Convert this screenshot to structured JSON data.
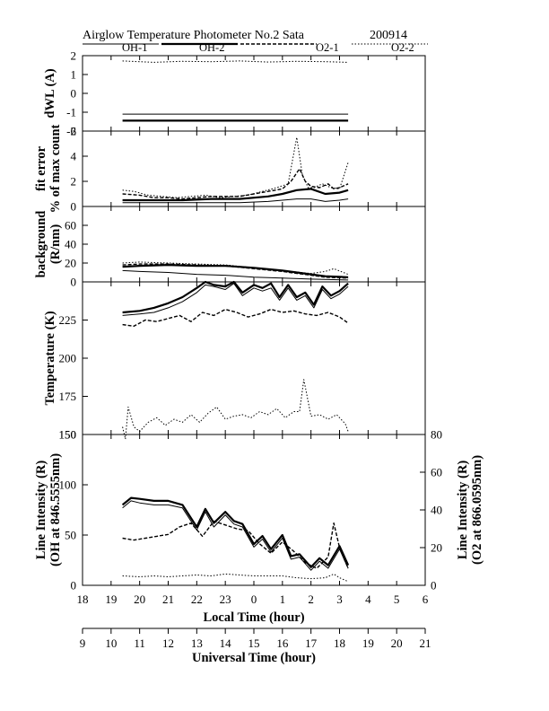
{
  "header": {
    "title": "Airglow Temperature Photometer No.2  Sata",
    "date": "200914"
  },
  "chart_data": {
    "type": "line",
    "legend": [
      {
        "name": "OH-1",
        "style": "thin-solid"
      },
      {
        "name": "OH-2",
        "style": "thick-solid"
      },
      {
        "name": "O2-1",
        "style": "dashed"
      },
      {
        "name": "O2-2",
        "style": "dotted"
      }
    ],
    "x_axes": {
      "local": {
        "label": "Local Time (hour)",
        "ticks": [
          "18",
          "19",
          "20",
          "21",
          "22",
          "23",
          "0",
          "1",
          "2",
          "3",
          "4",
          "5",
          "6"
        ],
        "range": [
          18,
          30
        ]
      },
      "universal": {
        "label": "Universal Time (hour)",
        "ticks": [
          "9",
          "10",
          "11",
          "12",
          "13",
          "14",
          "15",
          "16",
          "17",
          "18",
          "19",
          "20",
          "21"
        ],
        "range": [
          9,
          21
        ]
      }
    },
    "panels": [
      {
        "id": "dwl",
        "ylabel": "dWL (A)",
        "ylim": [
          -2,
          2
        ],
        "yticks": [
          "2",
          "1",
          "0",
          "-1",
          "-2"
        ],
        "series": [
          {
            "name": "OH-1",
            "x": [
              19.4,
              20.2,
              21.0,
              22.0,
              23.0,
              0.0,
              1.0,
              2.0,
              3.3
            ],
            "y": [
              -1.1,
              -1.1,
              -1.1,
              -1.1,
              -1.1,
              -1.1,
              -1.1,
              -1.1,
              -1.1
            ]
          },
          {
            "name": "OH-2",
            "x": [
              19.4,
              21.0,
              23.0,
              1.0,
              3.3
            ],
            "y": [
              -1.45,
              -1.45,
              -1.45,
              -1.45,
              -1.45
            ]
          },
          {
            "name": "O2-2",
            "x": [
              19.4,
              20.5,
              21.5,
              22.5,
              23.5,
              0.5,
              1.5,
              2.5,
              3.3
            ],
            "y": [
              1.72,
              1.65,
              1.7,
              1.68,
              1.72,
              1.66,
              1.7,
              1.68,
              1.65
            ]
          }
        ]
      },
      {
        "id": "fit_error",
        "ylabel": "fit error",
        "ylabel2": "% of max count",
        "ylim": [
          0,
          6
        ],
        "yticks": [
          "6",
          "4",
          "2",
          "0"
        ],
        "series": [
          {
            "name": "OH-1",
            "x": [
              19.4,
              20.5,
              21.5,
              22.5,
              23.5,
              0.5,
              1.0,
              1.5,
              2.0,
              2.5,
              3.0,
              3.3
            ],
            "y": [
              0.3,
              0.3,
              0.3,
              0.3,
              0.3,
              0.4,
              0.5,
              0.6,
              0.6,
              0.4,
              0.5,
              0.6
            ]
          },
          {
            "name": "OH-2",
            "x": [
              19.4,
              20.5,
              21.5,
              22.5,
              23.5,
              0.5,
              1.0,
              1.5,
              2.0,
              2.5,
              3.0,
              3.3
            ],
            "y": [
              0.5,
              0.5,
              0.5,
              0.6,
              0.6,
              0.8,
              1.0,
              1.3,
              1.4,
              1.0,
              1.1,
              1.3
            ]
          },
          {
            "name": "O2-1",
            "x": [
              19.4,
              20.0,
              20.5,
              21.0,
              21.5,
              22.0,
              22.5,
              23.0,
              23.5,
              0.0,
              0.5,
              1.0,
              1.3,
              1.6,
              1.8,
              2.0,
              2.3,
              2.6,
              2.8,
              3.0,
              3.3
            ],
            "y": [
              1.0,
              0.9,
              0.7,
              0.7,
              0.6,
              0.7,
              0.8,
              0.8,
              0.8,
              1.0,
              1.2,
              1.4,
              2.0,
              3.0,
              2.0,
              1.6,
              1.5,
              1.8,
              1.4,
              1.5,
              1.8
            ]
          },
          {
            "name": "O2-2",
            "x": [
              19.4,
              19.8,
              20.3,
              20.8,
              21.3,
              21.8,
              22.3,
              22.8,
              23.3,
              23.8,
              0.3,
              0.8,
              1.2,
              1.5,
              1.7,
              1.9,
              2.1,
              2.4,
              2.7,
              3.0,
              3.3
            ],
            "y": [
              1.3,
              1.2,
              0.9,
              0.8,
              0.7,
              0.8,
              0.9,
              0.7,
              0.8,
              0.9,
              1.2,
              1.5,
              1.8,
              5.5,
              2.5,
              1.5,
              1.5,
              1.8,
              1.5,
              1.4,
              3.5
            ]
          }
        ]
      },
      {
        "id": "background",
        "ylabel": "background",
        "ylabel2": "(R/nm)",
        "ylim": [
          0,
          80
        ],
        "yticks": [
          "60",
          "40",
          "20",
          "0"
        ],
        "series": [
          {
            "name": "OH-1",
            "x": [
              19.4,
              20.0,
              21.0,
              22.0,
              23.0,
              0.0,
              1.0,
              2.0,
              3.3
            ],
            "y": [
              12,
              11,
              10,
              8,
              7,
              5,
              4,
              3,
              2
            ]
          },
          {
            "name": "OH-2",
            "x": [
              19.4,
              20.0,
              21.0,
              22.0,
              23.0,
              0.0,
              1.0,
              2.0,
              2.5,
              3.3
            ],
            "y": [
              16,
              17,
              18,
              17,
              17,
              15,
              12,
              8,
              6,
              5
            ]
          },
          {
            "name": "O2-1",
            "x": [
              19.4,
              20.0,
              21.0,
              22.0,
              23.0,
              0.0,
              1.0,
              2.0,
              2.5,
              3.3
            ],
            "y": [
              18,
              19,
              19,
              18,
              17,
              14,
              11,
              7,
              5,
              4
            ]
          },
          {
            "name": "O2-2",
            "x": [
              19.4,
              20.0,
              21.0,
              22.0,
              23.0,
              0.0,
              1.0,
              2.0,
              2.5,
              2.8,
              3.3
            ],
            "y": [
              20,
              21,
              20,
              19,
              18,
              15,
              12,
              9,
              11,
              14,
              8
            ]
          }
        ]
      },
      {
        "id": "temperature",
        "ylabel": "Temperature (K)",
        "ylim": [
          150,
          250
        ],
        "yticks": [
          "225",
          "200",
          "175",
          "150"
        ],
        "series": [
          {
            "name": "OH-1",
            "x": [
              19.4,
              20.0,
              20.5,
              21.0,
              21.5,
              22.0,
              22.3,
              22.6,
              23.0,
              23.3,
              23.6,
              0.0,
              0.3,
              0.6,
              0.9,
              1.2,
              1.5,
              1.8,
              2.1,
              2.4,
              2.7,
              3.0,
              3.3
            ],
            "y": [
              228,
              229,
              230,
              233,
              237,
              243,
              248,
              247,
              245,
              249,
              241,
              246,
              244,
              246,
              238,
              246,
              238,
              241,
              233,
              245,
              239,
              242,
              247
            ]
          },
          {
            "name": "OH-2",
            "x": [
              19.4,
              20.0,
              20.5,
              21.0,
              21.5,
              22.0,
              22.3,
              22.6,
              23.0,
              23.3,
              23.6,
              0.0,
              0.3,
              0.6,
              0.9,
              1.2,
              1.5,
              1.8,
              2.1,
              2.4,
              2.7,
              3.0,
              3.3
            ],
            "y": [
              230,
              231,
              233,
              236,
              240,
              246,
              250,
              248,
              247,
              250,
              243,
              248,
              246,
              249,
              240,
              248,
              240,
              243,
              235,
              247,
              241,
              244,
              249
            ]
          },
          {
            "name": "O2-1",
            "x": [
              19.4,
              19.8,
              20.2,
              20.6,
              21.0,
              21.4,
              21.8,
              22.2,
              22.6,
              23.0,
              23.4,
              23.8,
              0.2,
              0.6,
              1.0,
              1.4,
              1.8,
              2.2,
              2.6,
              3.0,
              3.3
            ],
            "y": [
              222,
              221,
              225,
              224,
              226,
              228,
              224,
              230,
              228,
              232,
              230,
              227,
              229,
              232,
              230,
              231,
              229,
              228,
              230,
              227,
              223
            ]
          },
          {
            "name": "O2-2",
            "x": [
              19.4,
              19.5,
              19.6,
              19.8,
              20.0,
              20.3,
              20.6,
              20.9,
              21.2,
              21.5,
              21.8,
              22.1,
              22.4,
              22.7,
              23.0,
              23.3,
              23.6,
              23.9,
              0.2,
              0.5,
              0.8,
              1.1,
              1.4,
              1.6,
              1.75,
              2.0,
              2.3,
              2.6,
              2.9,
              3.2,
              3.3
            ],
            "y": [
              155,
              147,
              168,
              155,
              152,
              158,
              161,
              156,
              160,
              158,
              163,
              158,
              164,
              168,
              160,
              162,
              163,
              161,
              165,
              163,
              167,
              161,
              165,
              165,
              186,
              162,
              163,
              160,
              163,
              157,
              152
            ]
          }
        ]
      },
      {
        "id": "intensity",
        "ylabel": "Line Intensity (R)",
        "ylabel2": "(OH at 846.5555nm)",
        "ylabel_right": "Line Intensity (R)",
        "ylabel_right2": "(O2 at 866.0595nm)",
        "ylim": [
          0,
          150
        ],
        "ylim_right": [
          0,
          80
        ],
        "yticks": [
          "150",
          "100",
          "50",
          "0"
        ],
        "yticks_right": [
          "80",
          "60",
          "40",
          "20",
          "0"
        ],
        "series": [
          {
            "name": "OH-1",
            "axis": "left",
            "x": [
              19.4,
              19.7,
              20.0,
              20.5,
              21.0,
              21.5,
              22.0,
              22.3,
              22.6,
              23.0,
              23.3,
              23.6,
              0.0,
              0.3,
              0.6,
              1.0,
              1.3,
              1.6,
              2.0,
              2.3,
              2.6,
              3.0,
              3.3
            ],
            "y": [
              77,
              84,
              82,
              80,
              80,
              77,
              55,
              73,
              58,
              70,
              61,
              58,
              38,
              46,
              33,
              47,
              26,
              28,
              15,
              24,
              17,
              36,
              17
            ]
          },
          {
            "name": "OH-2",
            "axis": "left",
            "x": [
              19.4,
              19.7,
              20.0,
              20.5,
              21.0,
              21.5,
              22.0,
              22.3,
              22.6,
              23.0,
              23.3,
              23.6,
              0.0,
              0.3,
              0.6,
              1.0,
              1.3,
              1.6,
              2.0,
              2.3,
              2.6,
              3.0,
              3.3
            ],
            "y": [
              80,
              87,
              86,
              84,
              84,
              80,
              58,
              76,
              62,
              73,
              64,
              61,
              41,
              49,
              36,
              50,
              29,
              31,
              18,
              27,
              20,
              39,
              20
            ]
          },
          {
            "name": "O2-1",
            "axis": "right",
            "x": [
              19.4,
              19.8,
              20.2,
              20.6,
              21.0,
              21.4,
              21.8,
              22.2,
              22.6,
              23.0,
              23.4,
              23.8,
              0.2,
              0.6,
              1.0,
              1.4,
              1.8,
              2.2,
              2.6,
              2.8,
              3.0,
              3.3
            ],
            "y": [
              25,
              24,
              25,
              26,
              27,
              31,
              33,
              26,
              34,
              32,
              30,
              29,
              22,
              17,
              23,
              18,
              12,
              9,
              15,
              33,
              20,
              9
            ]
          },
          {
            "name": "O2-2",
            "axis": "right",
            "x": [
              19.4,
              20.0,
              20.5,
              21.0,
              21.5,
              22.0,
              22.5,
              23.0,
              23.5,
              0.0,
              0.5,
              1.0,
              1.5,
              2.0,
              2.5,
              2.8,
              3.0,
              3.3
            ],
            "y": [
              5,
              4.5,
              5,
              4.5,
              5,
              5.5,
              5,
              6,
              5.5,
              5,
              5,
              5,
              4,
              3.5,
              4,
              6,
              4,
              2
            ]
          }
        ]
      }
    ]
  }
}
